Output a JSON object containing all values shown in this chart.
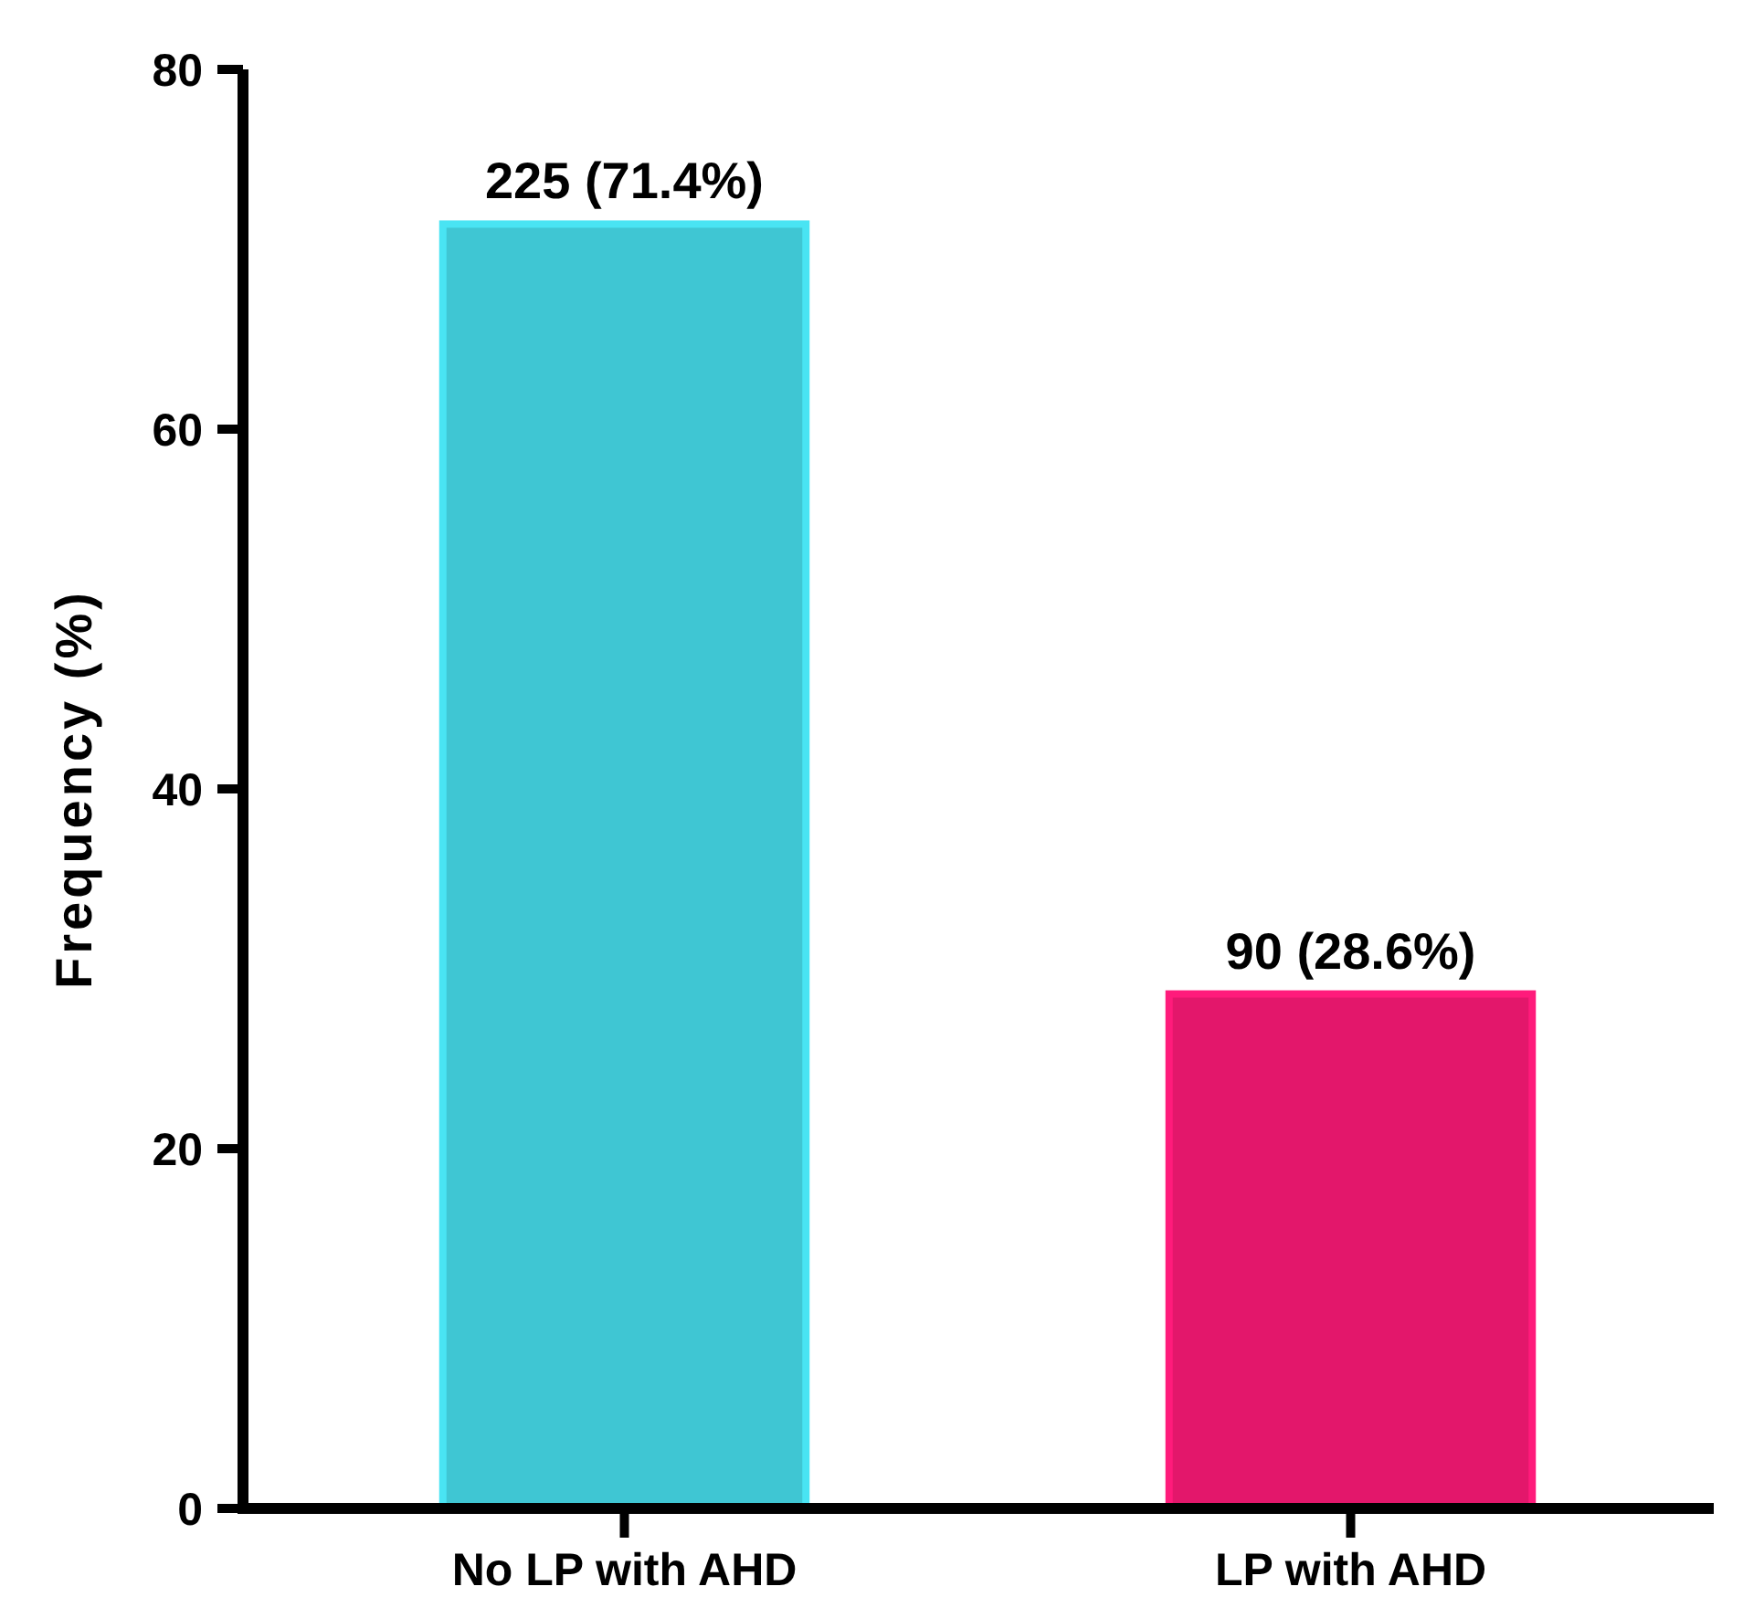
{
  "chart_data": {
    "type": "bar",
    "ylabel": "Frequency (%)",
    "categories": [
      "No LP with AHD",
      "LP with AHD"
    ],
    "values": [
      71.4,
      28.6
    ],
    "colors": [
      "#3fc6d3",
      "#e3176b"
    ],
    "value_labels": [
      "225 (71.4%)",
      "90 (28.6%)"
    ],
    "ylim": [
      0,
      80
    ],
    "yticks": [
      0,
      20,
      40,
      60,
      80
    ],
    "grid": false
  }
}
